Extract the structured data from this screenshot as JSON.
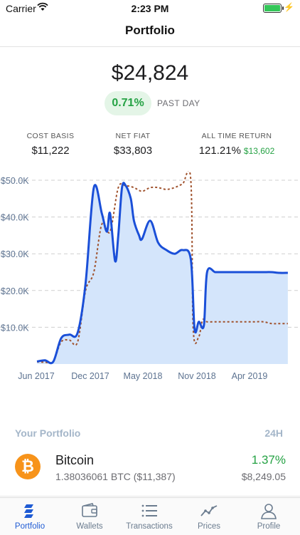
{
  "status_bar": {
    "carrier": "Carrier",
    "time": "2:23 PM"
  },
  "nav": {
    "title": "Portfolio"
  },
  "summary": {
    "balance": "$24,824",
    "change_pct": "0.71%",
    "change_period": "PAST DAY",
    "stats": [
      {
        "label": "COST BASIS",
        "value": "$11,222"
      },
      {
        "label": "NET FIAT",
        "value": "$33,803"
      },
      {
        "label": "ALL TIME RETURN",
        "value": "121.21%",
        "extra": "$13,602"
      }
    ]
  },
  "chart_data": {
    "type": "area",
    "y_ticks": [
      "$50.0K",
      "$40.0K",
      "$30.0K",
      "$20.0K",
      "$10.0K"
    ],
    "x_ticks": [
      "Jun 2017",
      "Dec 2017",
      "May 2018",
      "Nov 2018",
      "Apr 2019"
    ],
    "ylim": [
      0,
      50000
    ],
    "grid": true,
    "colors": {
      "portfolio": "#1a4fd8",
      "fill": "#d4e5fb",
      "cost_basis": "#a0522d",
      "grid": "#cfcfcf"
    },
    "series": [
      {
        "style": "solid-area",
        "x": [
          "2017-04",
          "2017-05",
          "2017-06",
          "2017-07",
          "2017-08",
          "2017-09",
          "2017-10",
          "2017-11",
          "2017-12",
          "2017-12-20",
          "2018-01",
          "2018-01-20",
          "2018-02",
          "2018-02-15",
          "2018-03",
          "2018-03-20",
          "2018-04",
          "2018-04-20",
          "2018-05",
          "2018-06",
          "2018-07",
          "2018-08",
          "2018-09",
          "2018-10",
          "2018-11",
          "2018-11-15",
          "2018-12",
          "2018-12-20",
          "2019-01",
          "2019-02",
          "2019-03",
          "2019-04",
          "2019-05",
          "2019-06",
          "2019-07",
          "2019-08",
          "2019-09",
          "2019-10",
          "2019-11"
        ],
        "values": [
          700,
          1000,
          600,
          7000,
          8000,
          8500,
          22000,
          48000,
          41000,
          36000,
          41000,
          28000,
          35000,
          48000,
          48500,
          45000,
          39000,
          35000,
          34000,
          39000,
          33000,
          31000,
          30000,
          31000,
          28500,
          9500,
          11500,
          10500,
          25000,
          25000,
          25000,
          25000,
          25000,
          25000,
          25000,
          25000,
          25000,
          24800,
          24800
        ]
      },
      {
        "style": "dashed",
        "x": [
          "2017-04",
          "2017-05",
          "2017-06",
          "2017-07",
          "2017-08",
          "2017-09",
          "2017-10",
          "2017-11",
          "2017-12",
          "2018-01",
          "2018-02",
          "2018-03",
          "2018-04",
          "2018-05",
          "2018-06",
          "2018-07",
          "2018-08",
          "2018-09",
          "2018-10",
          "2018-11",
          "2018-11-10",
          "2018-12",
          "2018-12-15",
          "2019-01",
          "2019-02",
          "2019-03",
          "2019-04",
          "2019-05",
          "2019-06",
          "2019-07",
          "2019-08",
          "2019-09",
          "2019-10",
          "2019-11"
        ],
        "values": [
          600,
          500,
          700,
          6000,
          6500,
          6000,
          20000,
          25000,
          38000,
          36000,
          48000,
          48500,
          48000,
          47000,
          48000,
          48000,
          47500,
          48000,
          49000,
          50000,
          9500,
          7500,
          12000,
          11500,
          11500,
          11500,
          11500,
          11500,
          11500,
          11500,
          11500,
          11000,
          11000,
          11000
        ]
      }
    ]
  },
  "portfolio_section": {
    "title": "Your Portfolio",
    "period": "24H",
    "assets": [
      {
        "icon": "bitcoin-icon",
        "symbol_glyph": "₿",
        "name": "Bitcoin",
        "amount": "1.38036061 BTC ($11,387)",
        "change": "1.37%",
        "value": "$8,249.05"
      }
    ]
  },
  "tabs": [
    {
      "label": "Portfolio",
      "icon": "portfolio-icon",
      "active": true
    },
    {
      "label": "Wallets",
      "icon": "wallet-icon",
      "active": false
    },
    {
      "label": "Transactions",
      "icon": "list-icon",
      "active": false
    },
    {
      "label": "Prices",
      "icon": "trend-icon",
      "active": false
    },
    {
      "label": "Profile",
      "icon": "profile-icon",
      "active": false
    }
  ]
}
